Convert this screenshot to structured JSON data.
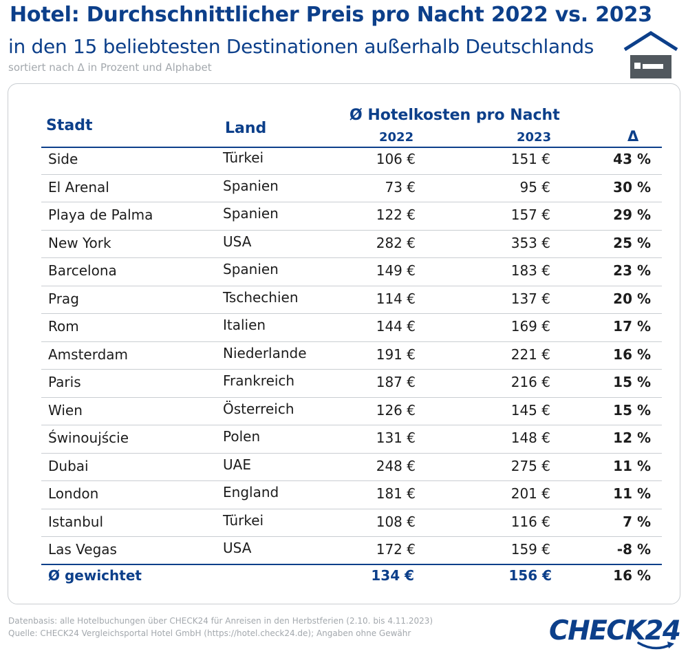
{
  "header": {
    "title": "Hotel: Durchschnittlicher Preis pro Nacht 2022 vs. 2023",
    "subtitle": "in den 15 beliebtesten Destinationen außerhalb Deutschlands",
    "sort_note": "sortiert nach Δ in Prozent und Alphabet"
  },
  "icon": "hotel-bed-house-icon",
  "colors": {
    "primary": "#0c3f8a",
    "muted": "#a3a8ad",
    "divider": "#c9cdd1",
    "icon": "#51585e"
  },
  "table": {
    "columns": {
      "city": "Stadt",
      "country": "Land",
      "group": "Ø Hotelkosten pro Nacht",
      "y2022": "2022",
      "y2023": "2023",
      "delta": "Δ"
    },
    "rows": [
      {
        "city": "Side",
        "country": "Türkei",
        "p2022": "106 €",
        "p2023": "151 €",
        "delta": "43 %"
      },
      {
        "city": "El Arenal",
        "country": "Spanien",
        "p2022": "73 €",
        "p2023": "95 €",
        "delta": "30 %"
      },
      {
        "city": "Playa de Palma",
        "country": "Spanien",
        "p2022": "122 €",
        "p2023": "157 €",
        "delta": "29 %"
      },
      {
        "city": "New York",
        "country": "USA",
        "p2022": "282 €",
        "p2023": "353 €",
        "delta": "25 %"
      },
      {
        "city": "Barcelona",
        "country": "Spanien",
        "p2022": "149 €",
        "p2023": "183 €",
        "delta": "23 %"
      },
      {
        "city": "Prag",
        "country": "Tschechien",
        "p2022": "114 €",
        "p2023": "137 €",
        "delta": "20 %"
      },
      {
        "city": "Rom",
        "country": "Italien",
        "p2022": "144 €",
        "p2023": "169 €",
        "delta": "17 %"
      },
      {
        "city": "Amsterdam",
        "country": "Niederlande",
        "p2022": "191 €",
        "p2023": "221 €",
        "delta": "16 %"
      },
      {
        "city": "Paris",
        "country": "Frankreich",
        "p2022": "187 €",
        "p2023": "216 €",
        "delta": "15 %"
      },
      {
        "city": "Wien",
        "country": "Österreich",
        "p2022": "126 €",
        "p2023": "145 €",
        "delta": "15 %"
      },
      {
        "city": "Świnoujście",
        "country": "Polen",
        "p2022": "131 €",
        "p2023": "148 €",
        "delta": "12 %"
      },
      {
        "city": "Dubai",
        "country": "UAE",
        "p2022": "248 €",
        "p2023": "275 €",
        "delta": "11 %"
      },
      {
        "city": "London",
        "country": "England",
        "p2022": "181 €",
        "p2023": "201 €",
        "delta": "11 %"
      },
      {
        "city": "Istanbul",
        "country": "Türkei",
        "p2022": "108 €",
        "p2023": "116 €",
        "delta": "7 %"
      },
      {
        "city": "Las Vegas",
        "country": "USA",
        "p2022": "172 €",
        "p2023": "159 €",
        "delta": "-8 %"
      }
    ],
    "average": {
      "label": "Ø gewichtet",
      "p2022": "134 €",
      "p2023": "156 €",
      "delta": "16 %"
    }
  },
  "footer": {
    "source_line1": "Datenbasis: alle Hotelbuchungen über CHECK24 für Anreisen in den Herbstferien (2.10. bis 4.11.2023)",
    "source_line2": "Quelle: CHECK24 Vergleichsportal Hotel GmbH (https://hotel.check24.de); Angaben ohne Gewähr"
  },
  "logo": {
    "text": "CHECK24"
  }
}
